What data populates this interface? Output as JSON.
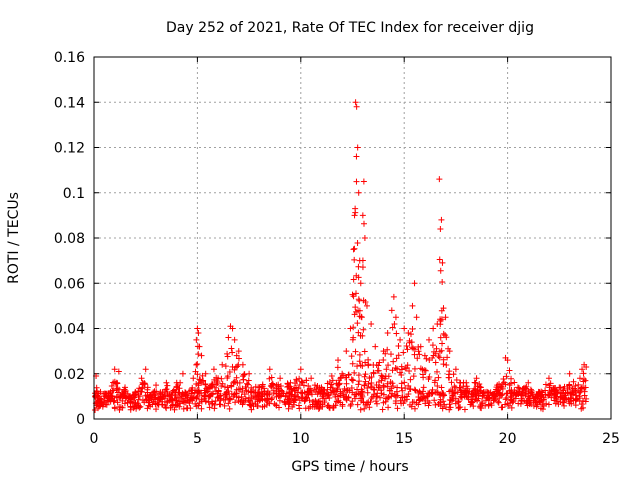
{
  "chart_data": {
    "type": "scatter",
    "title": "Day 252 of 2021, Rate Of TEC Index for receiver djig",
    "xlabel": "GPS time / hours",
    "ylabel": "ROTI / TECUs",
    "xlim": [
      0,
      25
    ],
    "ylim": [
      0,
      0.16
    ],
    "xticks": [
      "0",
      "5",
      "10",
      "15",
      "20",
      "25"
    ],
    "yticks": [
      "0",
      "0.02",
      "0.04",
      "0.06",
      "0.08",
      "0.1",
      "0.12",
      "0.14",
      "0.16"
    ],
    "grid": true,
    "marker": "+",
    "color": "#ff0000",
    "series": [
      {
        "name": "ROTI",
        "x": [
          0.05,
          0.1,
          0.15,
          0.2,
          0.3,
          0.5,
          0.8,
          1.0,
          1.1,
          1.2,
          1.3,
          1.5,
          1.8,
          2.0,
          2.3,
          2.5,
          2.6,
          2.8,
          3.0,
          3.3,
          3.5,
          3.8,
          4.0,
          4.3,
          4.5,
          4.8,
          4.95,
          5.0,
          5.05,
          5.1,
          5.2,
          5.4,
          5.6,
          5.8,
          6.0,
          6.2,
          6.5,
          6.6,
          6.7,
          6.8,
          6.9,
          7.0,
          7.2,
          7.5,
          8.0,
          8.5,
          9.0,
          9.5,
          10.0,
          10.5,
          11.0,
          11.5,
          11.8,
          12.0,
          12.2,
          12.4,
          12.5,
          12.55,
          12.6,
          12.65,
          12.7,
          12.75,
          12.8,
          12.85,
          12.9,
          12.95,
          13.0,
          13.05,
          13.1,
          13.2,
          13.4,
          13.6,
          13.8,
          14.0,
          14.2,
          14.4,
          14.5,
          14.6,
          14.8,
          15.0,
          15.2,
          15.4,
          15.5,
          15.6,
          15.8,
          16.0,
          16.2,
          16.4,
          16.6,
          16.7,
          16.75,
          16.8,
          16.85,
          16.9,
          17.0,
          17.2,
          17.5,
          18.0,
          18.5,
          19.0,
          19.5,
          19.9,
          20.0,
          20.5,
          21.0,
          21.5,
          22.0,
          22.5,
          23.0,
          23.5,
          23.6,
          23.7,
          23.8
        ],
        "values": [
          0.004,
          0.019,
          0.012,
          0.008,
          0.006,
          0.008,
          0.012,
          0.022,
          0.016,
          0.021,
          0.01,
          0.014,
          0.009,
          0.012,
          0.018,
          0.022,
          0.014,
          0.011,
          0.015,
          0.009,
          0.016,
          0.012,
          0.016,
          0.02,
          0.011,
          0.018,
          0.035,
          0.04,
          0.038,
          0.032,
          0.028,
          0.02,
          0.014,
          0.022,
          0.018,
          0.024,
          0.036,
          0.041,
          0.04,
          0.035,
          0.028,
          0.03,
          0.024,
          0.02,
          0.014,
          0.022,
          0.018,
          0.016,
          0.022,
          0.018,
          0.014,
          0.019,
          0.026,
          0.02,
          0.03,
          0.04,
          0.055,
          0.075,
          0.09,
          0.14,
          0.138,
          0.12,
          0.1,
          0.07,
          0.06,
          0.045,
          0.09,
          0.105,
          0.08,
          0.05,
          0.042,
          0.032,
          0.025,
          0.03,
          0.038,
          0.048,
          0.054,
          0.045,
          0.035,
          0.04,
          0.038,
          0.05,
          0.06,
          0.045,
          0.032,
          0.028,
          0.035,
          0.04,
          0.042,
          0.106,
          0.084,
          0.088,
          0.069,
          0.049,
          0.045,
          0.03,
          0.022,
          0.016,
          0.018,
          0.012,
          0.015,
          0.027,
          0.026,
          0.014,
          0.016,
          0.012,
          0.018,
          0.014,
          0.02,
          0.018,
          0.022,
          0.024,
          0.023
        ]
      }
    ]
  }
}
